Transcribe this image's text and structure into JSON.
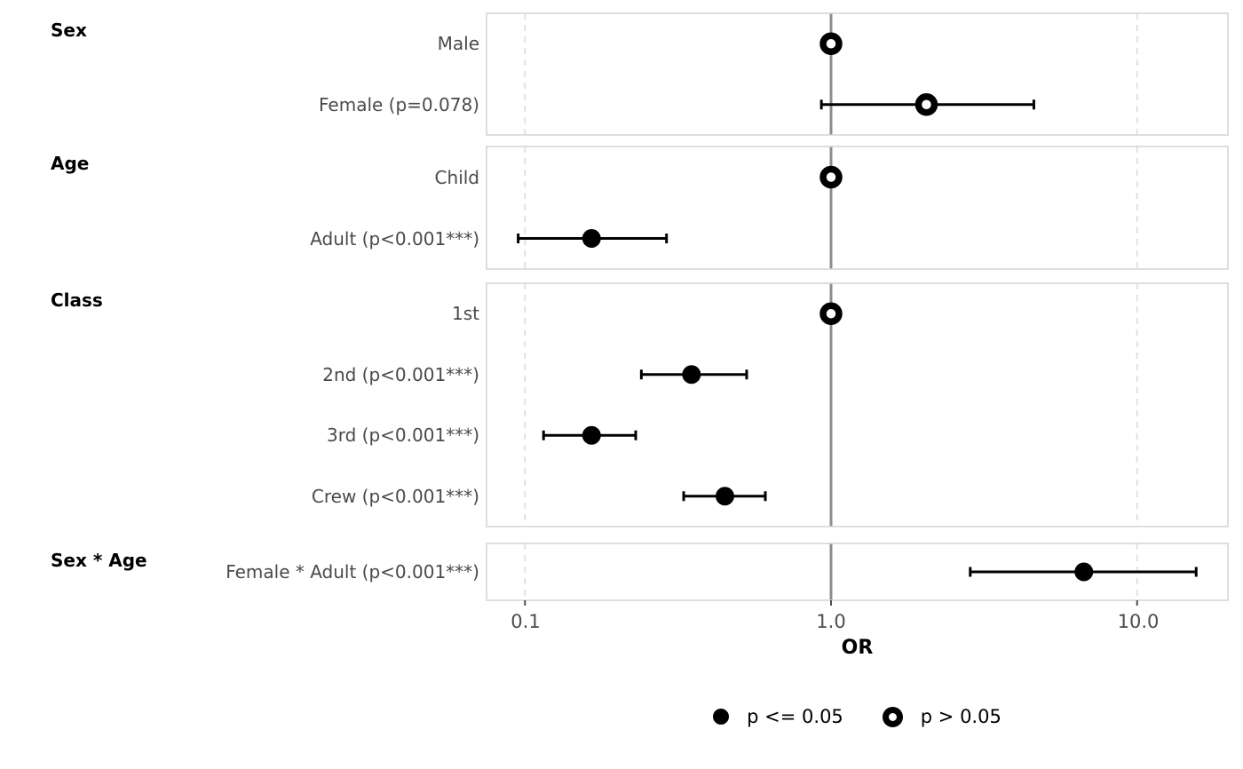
{
  "chart_data": {
    "type": "forest",
    "title": "",
    "xlabel": "OR",
    "x_scale": "log10",
    "xlim": [
      0.07,
      19
    ],
    "x_ticks": [
      {
        "value": 0.1,
        "label": "0.1"
      },
      {
        "value": 1.0,
        "label": "1.0"
      },
      {
        "value": 10.0,
        "label": "10.0"
      }
    ],
    "x_gridlines_dashed": [
      0.1,
      10.0
    ],
    "reference_line": 1.0,
    "legend": [
      {
        "marker": "filled-circle",
        "label": "p <= 0.05"
      },
      {
        "marker": "open-circle",
        "label": "p > 0.05"
      }
    ],
    "groups": [
      {
        "title": "Sex",
        "rows": [
          {
            "label": "Male",
            "or": 1.0,
            "ci_low": null,
            "ci_high": null,
            "marker": "open-circle",
            "reference": true
          },
          {
            "label": "Female (p=0.078)",
            "or": 2.05,
            "ci_low": 0.93,
            "ci_high": 4.6,
            "marker": "open-circle",
            "reference": false
          }
        ]
      },
      {
        "title": "Age",
        "rows": [
          {
            "label": "Child",
            "or": 1.0,
            "ci_low": null,
            "ci_high": null,
            "marker": "open-circle",
            "reference": true
          },
          {
            "label": "Adult (p<0.001***)",
            "or": 0.165,
            "ci_low": 0.095,
            "ci_high": 0.29,
            "marker": "filled-circle",
            "reference": false
          }
        ]
      },
      {
        "title": "Class",
        "rows": [
          {
            "label": "1st",
            "or": 1.0,
            "ci_low": null,
            "ci_high": null,
            "marker": "open-circle",
            "reference": true
          },
          {
            "label": "2nd (p<0.001***)",
            "or": 0.35,
            "ci_low": 0.24,
            "ci_high": 0.53,
            "marker": "filled-circle",
            "reference": false
          },
          {
            "label": "3rd (p<0.001***)",
            "or": 0.165,
            "ci_low": 0.115,
            "ci_high": 0.23,
            "marker": "filled-circle",
            "reference": false
          },
          {
            "label": "Crew (p<0.001***)",
            "or": 0.45,
            "ci_low": 0.33,
            "ci_high": 0.61,
            "marker": "filled-circle",
            "reference": false
          }
        ]
      },
      {
        "title": "Sex * Age",
        "rows": [
          {
            "label": "Female * Adult (p<0.001***)",
            "or": 6.7,
            "ci_low": 2.85,
            "ci_high": 15.6,
            "marker": "filled-circle",
            "reference": false
          }
        ]
      }
    ],
    "colors": {
      "marker": "#000000",
      "reference_line": "#8c8c8c",
      "grid_dashed": "#e2e2e2",
      "panel_border": "#d4d4d4",
      "axis_tick": "#4d4d4d",
      "row_label": "#4a4a4a",
      "group_header": "#000000"
    }
  }
}
